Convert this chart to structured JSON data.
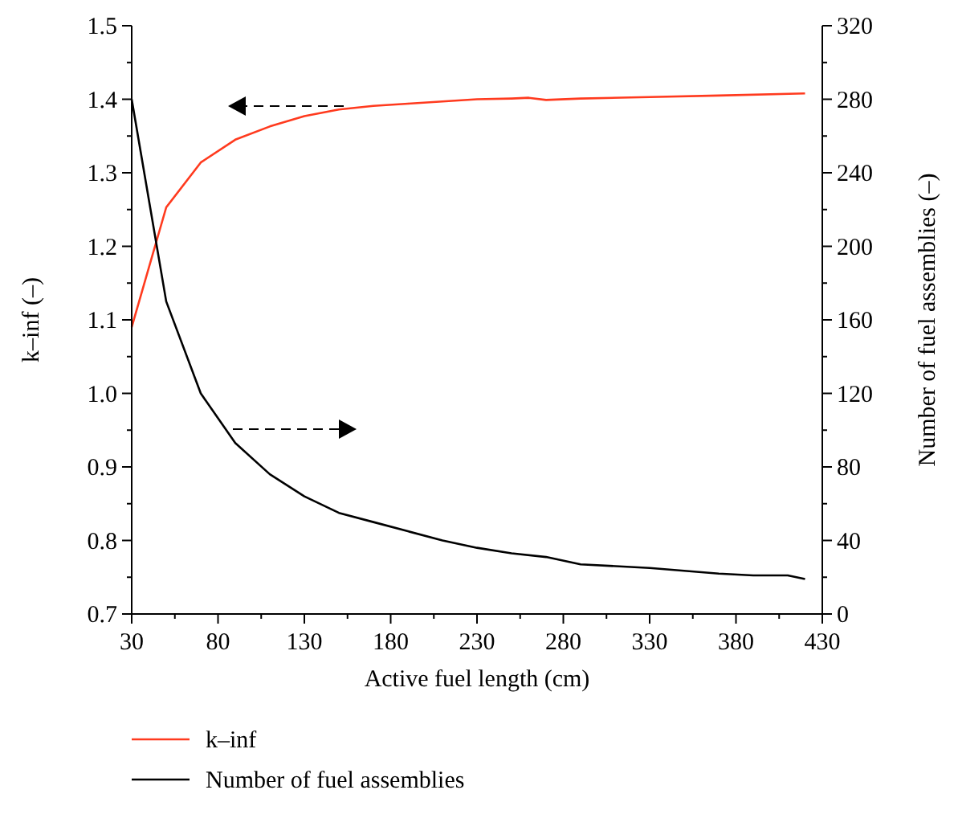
{
  "chart_data": {
    "type": "line",
    "xlabel": "Active fuel length (cm)",
    "ylabel": "k–inf (–)",
    "y2label": "Number of fuel assemblies (–)",
    "xlim": [
      30,
      430
    ],
    "xticks": [
      30,
      {
        "value": 55,
        "label": null
      },
      80,
      {
        "value": 105,
        "label": null
      },
      130,
      {
        "value": 155,
        "label": null
      },
      180,
      {
        "value": 205,
        "label": null
      },
      230,
      {
        "value": 255,
        "label": null
      },
      280,
      {
        "value": 305,
        "label": null
      },
      330,
      {
        "value": 355,
        "label": null
      },
      380,
      {
        "value": 405,
        "label": null
      },
      430
    ],
    "ylim": [
      0.7,
      1.5
    ],
    "yticks": [
      {
        "value": 0.7,
        "label": "0.7"
      },
      {
        "value": 0.75,
        "label": null
      },
      {
        "value": 0.8,
        "label": "0.8"
      },
      {
        "value": 0.85,
        "label": null
      },
      {
        "value": 0.9,
        "label": "0.9"
      },
      {
        "value": 0.95,
        "label": null
      },
      {
        "value": 1.0,
        "label": "1.0"
      },
      {
        "value": 1.05,
        "label": null
      },
      {
        "value": 1.1,
        "label": "1.1"
      },
      {
        "value": 1.15,
        "label": null
      },
      {
        "value": 1.2,
        "label": "1.2"
      },
      {
        "value": 1.25,
        "label": null
      },
      {
        "value": 1.3,
        "label": "1.3"
      },
      {
        "value": 1.35,
        "label": null
      },
      {
        "value": 1.4,
        "label": "1.4"
      },
      {
        "value": 1.45,
        "label": null
      },
      {
        "value": 1.5,
        "label": "1.5"
      }
    ],
    "y2lim": [
      0,
      320
    ],
    "y2ticks": [
      0,
      {
        "value": 20,
        "label": null
      },
      40,
      {
        "value": 60,
        "label": null
      },
      80,
      {
        "value": 100,
        "label": null
      },
      120,
      {
        "value": 140,
        "label": null
      },
      160,
      {
        "value": 180,
        "label": null
      },
      200,
      {
        "value": 220,
        "label": null
      },
      240,
      {
        "value": 260,
        "label": null
      },
      280,
      {
        "value": 300,
        "label": null
      },
      320
    ],
    "legend": "bottom",
    "grid": false,
    "series": [
      {
        "name": "k–inf",
        "color": "#ff3a1e",
        "x": [
          30,
          50,
          70,
          90,
          110,
          130,
          150,
          170,
          190,
          210,
          230,
          250,
          260,
          270,
          290,
          330,
          370,
          420
        ],
        "values": [
          1.09,
          1.253,
          1.314,
          1.345,
          1.363,
          1.377,
          1.386,
          1.391,
          1.394,
          1.397,
          1.4,
          1.401,
          1.402,
          1.399,
          1.401,
          1.403,
          1.405,
          1.408
        ]
      },
      {
        "name": "Number of fuel assemblies",
        "color": "#000000",
        "axis": "y2",
        "x": [
          30,
          50,
          70,
          90,
          110,
          130,
          150,
          170,
          190,
          210,
          230,
          250,
          270,
          290,
          330,
          370,
          390,
          410,
          420
        ],
        "values": [
          280,
          170,
          120,
          93,
          76,
          64,
          55,
          50,
          45,
          40,
          36,
          33,
          31,
          27,
          25,
          22,
          21,
          21,
          19
        ]
      }
    ]
  }
}
